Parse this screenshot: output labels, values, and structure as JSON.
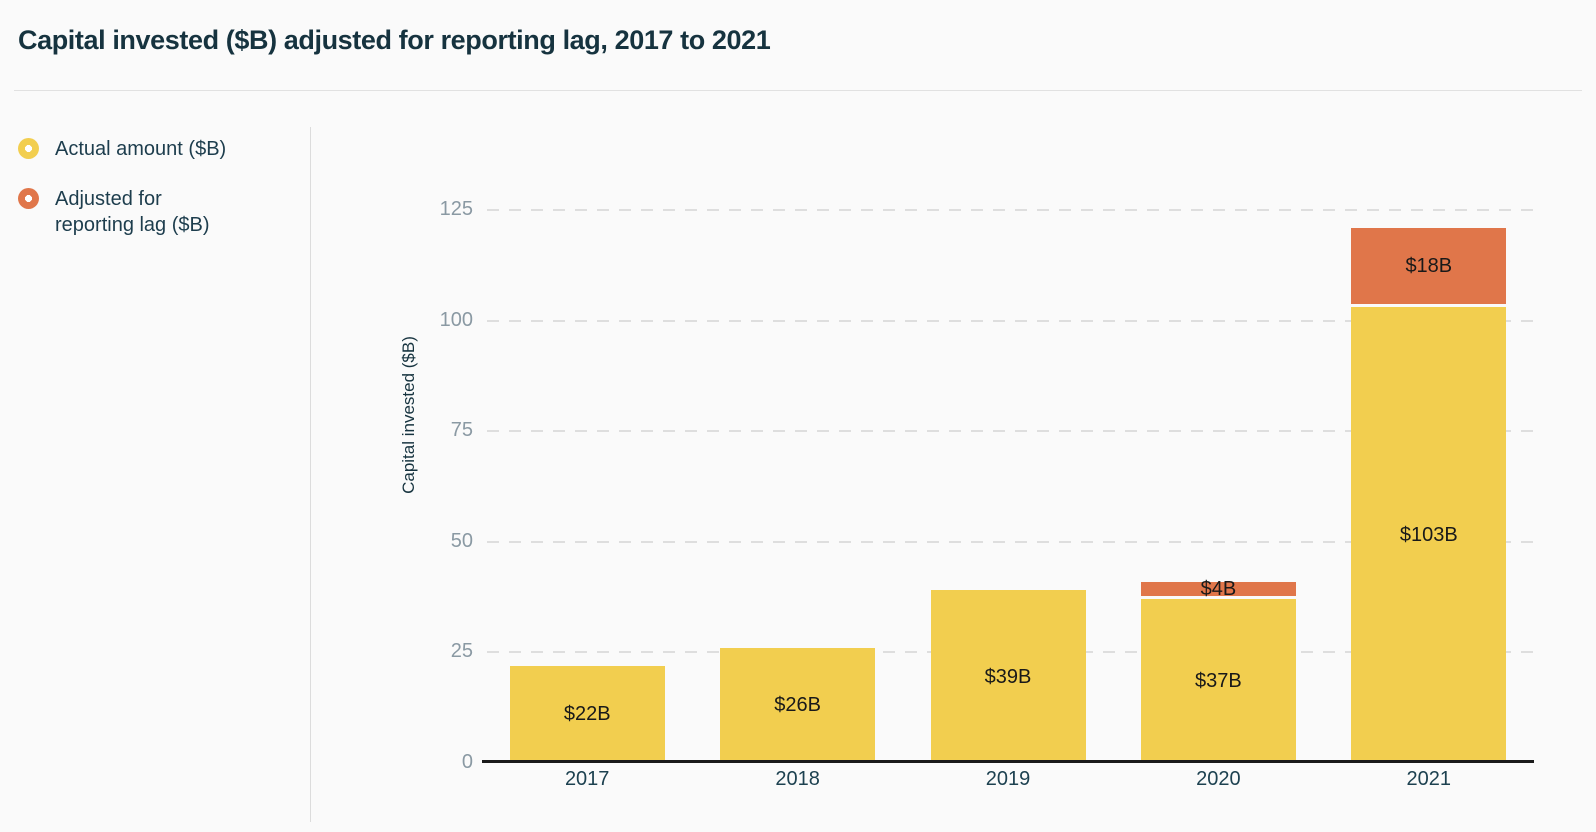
{
  "title": "Capital invested ($B) adjusted for reporting lag, 2017 to 2021",
  "legend": {
    "items": [
      {
        "label": "Actual amount ($B)",
        "color": "#F2CE4F"
      },
      {
        "label": "Adjusted for reporting lag ($B)",
        "color": "#E0764A"
      }
    ]
  },
  "chart_data": {
    "type": "bar",
    "stacked": true,
    "categories": [
      "2017",
      "2018",
      "2019",
      "2020",
      "2021"
    ],
    "series": [
      {
        "name": "Actual amount ($B)",
        "color": "#F2CE4F",
        "values": [
          22,
          26,
          39,
          37,
          103
        ],
        "labels": [
          "$22B",
          "$26B",
          "$39B",
          "$37B",
          "$103B"
        ]
      },
      {
        "name": "Adjusted for reporting lag ($B)",
        "color": "#E0764A",
        "values": [
          0,
          0,
          0,
          4,
          18
        ],
        "labels": [
          "",
          "",
          "",
          "$4B",
          "$18B"
        ]
      }
    ],
    "ylabel": "Capital invested ($B)",
    "yticks": [
      0,
      25,
      50,
      75,
      100,
      125
    ],
    "ylim": [
      0,
      125
    ],
    "grid": "dashed horizontal gridlines at 25,50,75,100,125",
    "legend_position": "left"
  },
  "colors": {
    "background": "#FAFAFA",
    "axis_line": "#1A1A1A",
    "gridline": "#DEDEDE",
    "tick_label": "#8A99A3",
    "text_dark": "#16333F",
    "bar_label": "#191919"
  }
}
